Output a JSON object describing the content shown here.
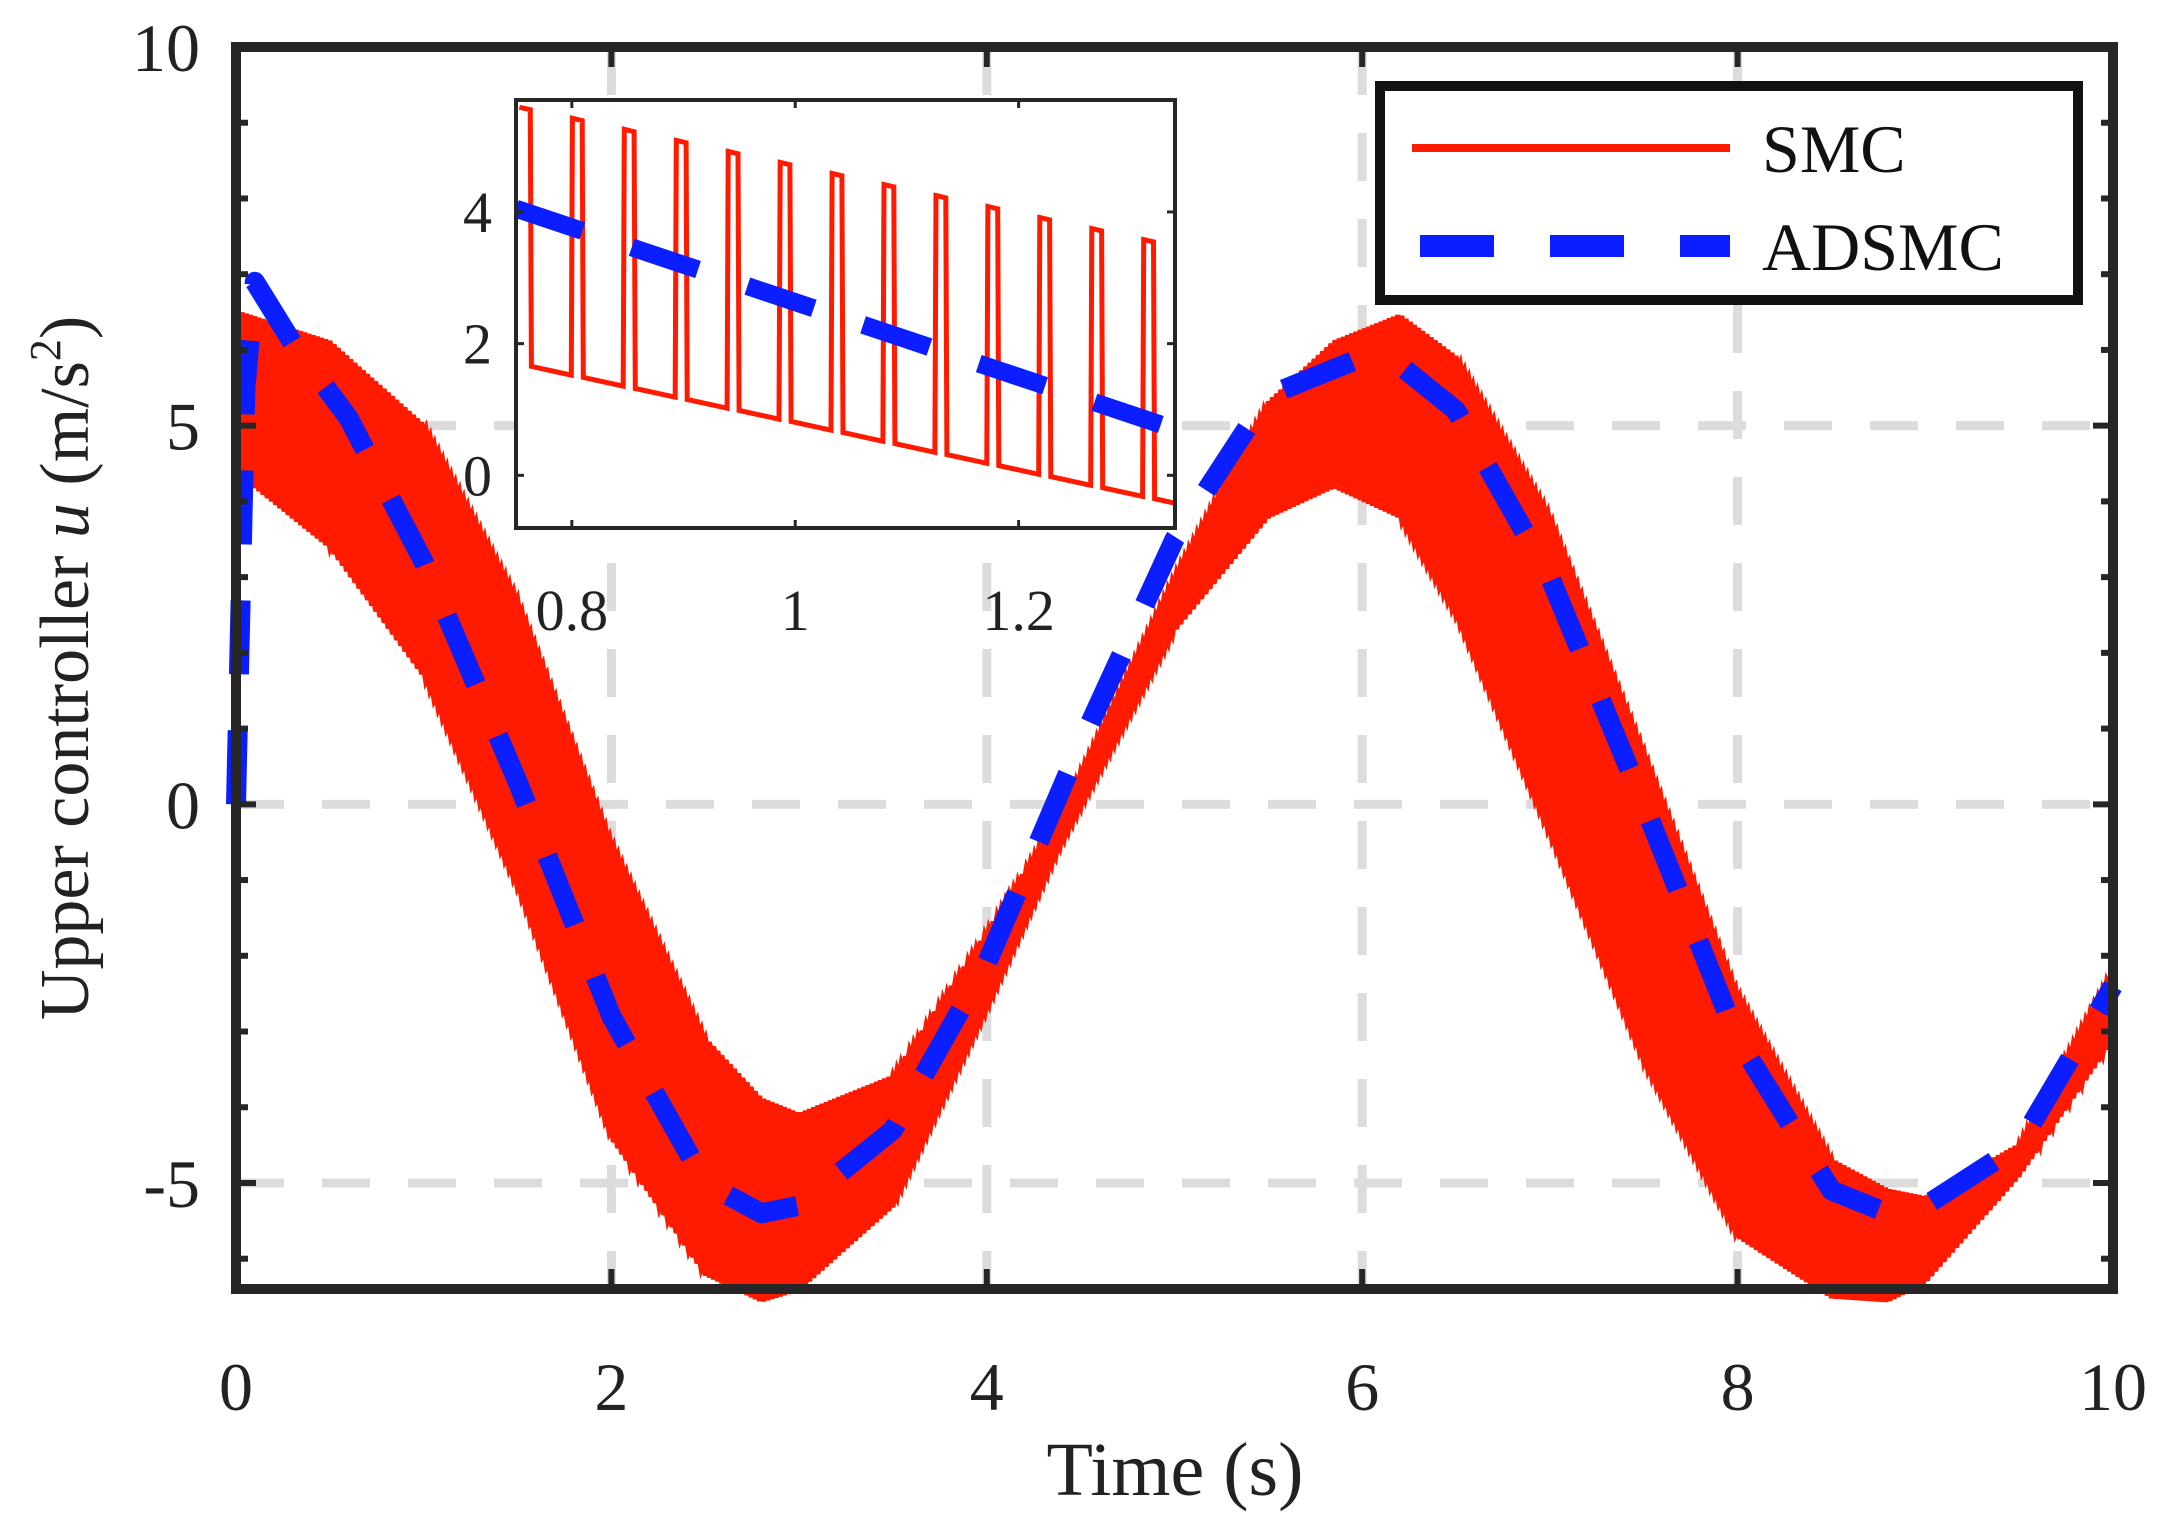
{
  "chart_data": {
    "type": "line",
    "xlabel": "Time (s)",
    "ylabel_prefix": "Upper controller ",
    "ylabel_var": "u",
    "ylabel_unit": "(m/s",
    "ylabel_sup": "2",
    "ylabel_close": ")",
    "xlim": [
      0,
      10
    ],
    "ylim": [
      -6.4,
      10
    ],
    "xticks": [
      0,
      2,
      4,
      6,
      8,
      10
    ],
    "yticks": [
      -5,
      0,
      5,
      10
    ],
    "xtick_labels": [
      "0",
      "2",
      "4",
      "6",
      "8",
      "10"
    ],
    "ytick_labels": [
      "-5",
      "0",
      "5",
      "10"
    ],
    "grid": true,
    "legend_position": "top-right",
    "colors": {
      "smc": "#ff1a00",
      "adsmc": "#0a1eff",
      "grid": "#dcdcdc",
      "axes": "#262626"
    },
    "series": [
      {
        "name": "SMC",
        "style": "solid-chattering",
        "description_values": {
          "upper_peak": 6.3,
          "lower_trough": -6.4,
          "band_half_width_max": 1.1
        },
        "x": [
          0,
          0.5,
          1,
          1.5,
          2,
          2.5,
          2.8,
          3,
          3.5,
          4,
          4.4,
          5,
          5.5,
          5.85,
          6.2,
          6.5,
          7,
          7.5,
          8,
          8.5,
          8.8,
          9,
          9.5,
          10
        ],
        "upper": [
          6.4,
          6.0,
          4.9,
          2.6,
          -0.6,
          -3.2,
          -4.0,
          -4.2,
          -3.7,
          -1.8,
          -0.2,
          2.9,
          5.2,
          6.0,
          6.35,
          5.8,
          3.7,
          0.6,
          -2.6,
          -4.8,
          -5.2,
          -5.3,
          -4.6,
          -2.3
        ],
        "lower": [
          4.5,
          3.5,
          1.8,
          -1.0,
          -4.3,
          -6.1,
          -6.45,
          -6.3,
          -5.2,
          -2.6,
          -0.4,
          2.4,
          3.9,
          4.3,
          3.9,
          2.6,
          -0.3,
          -3.3,
          -5.6,
          -6.4,
          -6.45,
          -6.2,
          -4.8,
          -3.0
        ]
      },
      {
        "name": "ADSMC",
        "style": "dashed",
        "x": [
          0,
          0.05,
          0.1,
          0.3,
          0.6,
          1,
          1.5,
          2,
          2.5,
          2.8,
          3,
          3.5,
          4,
          4.5,
          5,
          5.5,
          6,
          6.2,
          6.5,
          7,
          7.5,
          8,
          8.5,
          8.8,
          9,
          9.5,
          10
        ],
        "y": [
          0,
          5.5,
          6.9,
          6.1,
          5.1,
          3.2,
          0.3,
          -2.8,
          -5.0,
          -5.4,
          -5.3,
          -4.3,
          -2.1,
          0.8,
          3.5,
          5.4,
          5.9,
          5.8,
          5.2,
          3.0,
          0.0,
          -3.1,
          -5.1,
          -5.4,
          -5.3,
          -4.5,
          -2.4
        ]
      }
    ],
    "inset": {
      "xlim": [
        0.75,
        1.34
      ],
      "ylim": [
        -0.8,
        5.7
      ],
      "xticks": [
        0.8,
        1,
        1.2
      ],
      "yticks": [
        0,
        2,
        4
      ],
      "xtick_labels": [
        "0.8",
        "1",
        "1.2"
      ],
      "ytick_labels": [
        "0",
        "2",
        "4"
      ],
      "smc_period": 0.0465,
      "smc_start": 0.753,
      "smc_high_start": 5.6,
      "smc_high_slope": -3.6,
      "smc_low_start": 1.7,
      "smc_low_slope": -3.6,
      "adsmc_line": {
        "x": [
          0.75,
          1.34
        ],
        "y": [
          4.05,
          0.7
        ]
      }
    }
  },
  "legend": {
    "entries": [
      {
        "label": "SMC"
      },
      {
        "label": "ADSMC"
      }
    ]
  }
}
